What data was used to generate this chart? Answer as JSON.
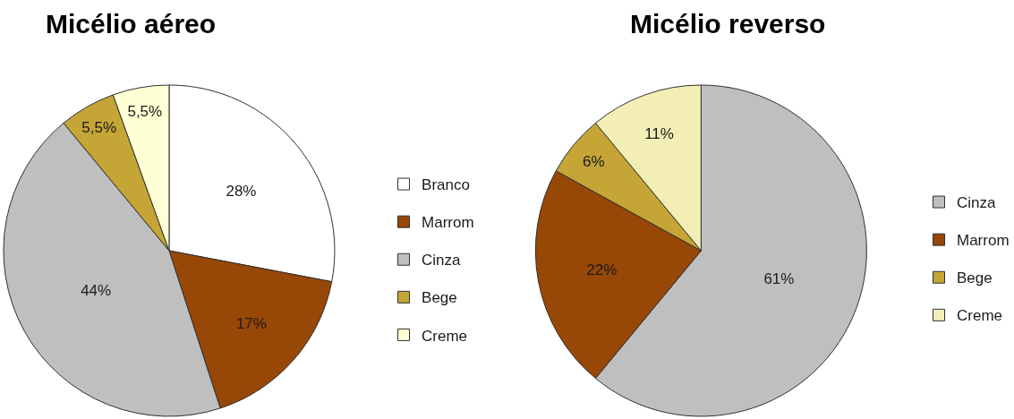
{
  "chart_data": [
    {
      "type": "pie",
      "title": "Micélio aéreo",
      "categories": [
        "Branco",
        "Marrom",
        "Cinza",
        "Bege",
        "Creme"
      ],
      "values": [
        28,
        17,
        44,
        5.5,
        5.5
      ],
      "colors": [
        "#ffffff",
        "#974706",
        "#bfbfbf",
        "#c4a535",
        "#ffffd5"
      ],
      "value_labels": [
        "28%",
        "17%",
        "44%",
        "5,5%",
        "5,5%"
      ],
      "legend": "right"
    },
    {
      "type": "pie",
      "title": "Micélio reverso",
      "categories": [
        "Cinza",
        "Marrom",
        "Bege",
        "Creme"
      ],
      "values": [
        61,
        22,
        6,
        11
      ],
      "colors": [
        "#bfbfbf",
        "#974706",
        "#c4a535",
        "#f2eeb5"
      ],
      "value_labels": [
        "61%",
        "22%",
        "6%",
        "11%"
      ],
      "legend": "right"
    }
  ]
}
